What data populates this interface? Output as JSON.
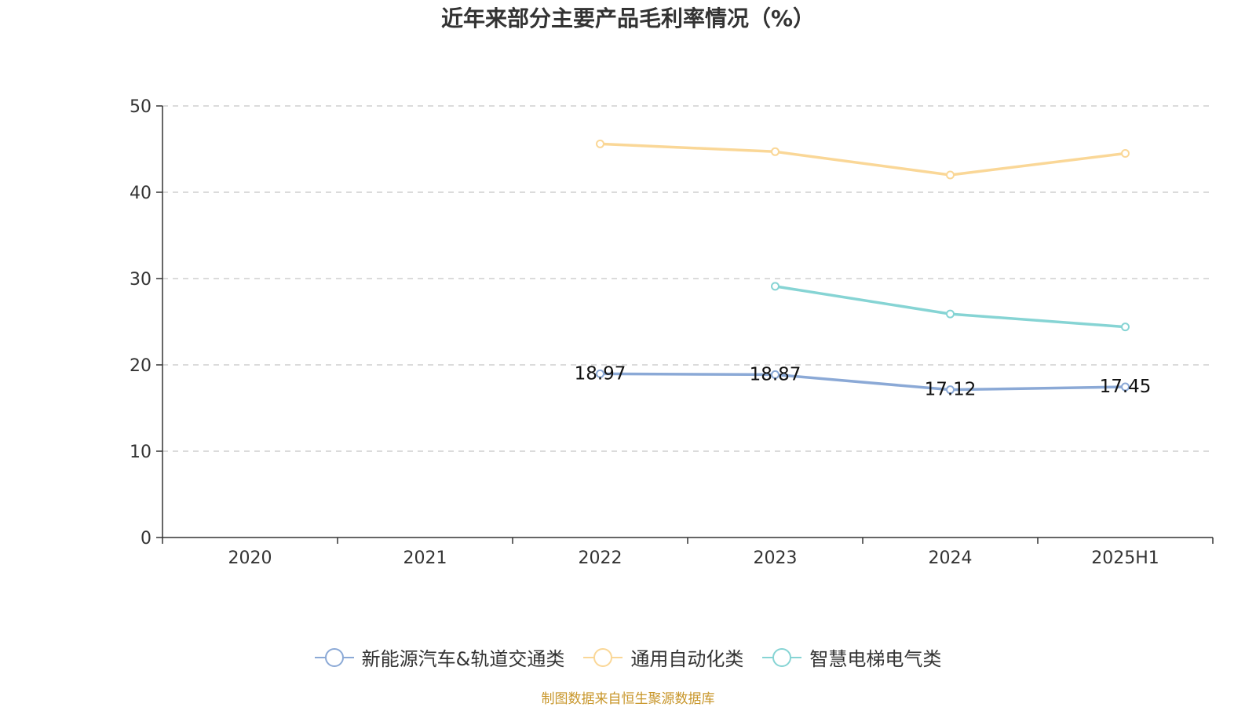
{
  "chart_data": {
    "type": "line",
    "title": "近年来部分主要产品毛利率情况（%）",
    "categories": [
      "2020",
      "2021",
      "2022",
      "2023",
      "2024",
      "2025H1"
    ],
    "ylim": [
      0,
      50
    ],
    "yticks": [
      0,
      10,
      20,
      30,
      40,
      50
    ],
    "grid": true,
    "legend_position": "bottom",
    "series": [
      {
        "name": "新能源汽车&轨道交通类",
        "color": "#8ba9d6",
        "values": [
          null,
          null,
          18.97,
          18.87,
          17.12,
          17.45
        ],
        "data_labels": [
          "",
          "",
          "18.97",
          "18.87",
          "17.12",
          "17.45"
        ]
      },
      {
        "name": "通用自动化类",
        "color": "#fad797",
        "values": [
          null,
          null,
          45.6,
          44.7,
          42.0,
          44.5
        ],
        "data_labels": []
      },
      {
        "name": "智慧电梯电气类",
        "color": "#86d4d4",
        "values": [
          null,
          null,
          null,
          29.1,
          25.9,
          24.4
        ],
        "data_labels": []
      }
    ]
  },
  "source_note": "制图数据来自恒生聚源数据库"
}
